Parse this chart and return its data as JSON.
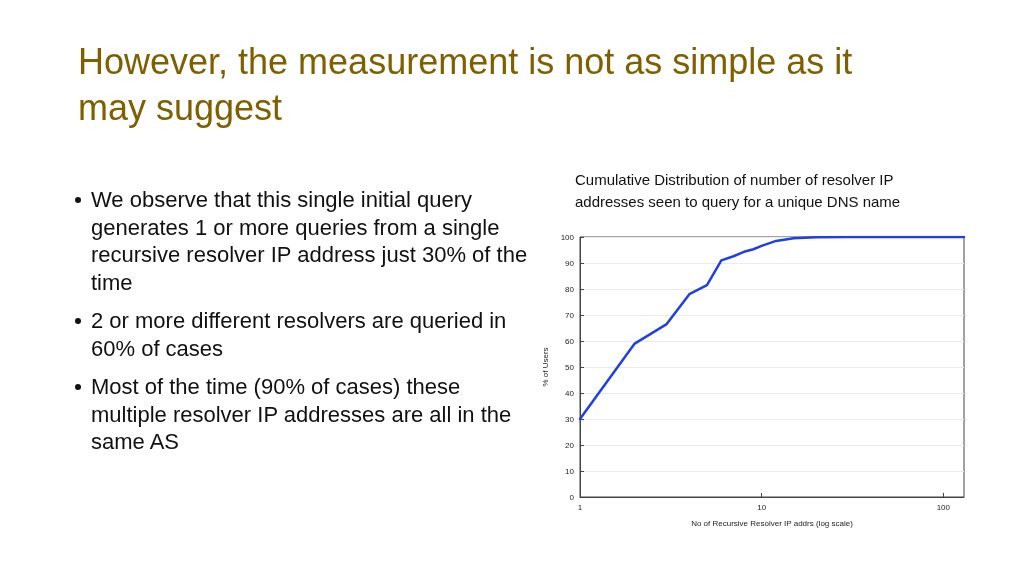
{
  "chart_data": {
    "type": "line",
    "title": "However, the measurement is not as simple as it may suggest",
    "subtitle": "Cumulative Distribution of number of resolver IP addresses seen to query for a unique DNS name",
    "xlabel": "No of Recursive Resolver IP addrs (log scale)",
    "ylabel": "% of Users",
    "annotations": [
      "We observe that this single initial query generates 1 or more queries from a single recursive resolver IP address just 30% of the time",
      "2 or more different resolvers are queried in 60% of cases",
      "Most of the time (90% of cases) these multiple resolver IP addresses are all in the same AS"
    ],
    "x": [
      1,
      2,
      3,
      4,
      5,
      6,
      7,
      8,
      9,
      10,
      12,
      15,
      20,
      30,
      50,
      100,
      130
    ],
    "values": [
      30,
      59,
      66.5,
      78,
      81.5,
      91,
      92.6,
      94.3,
      95.3,
      96.6,
      98.5,
      99.5,
      99.9,
      100,
      100,
      100,
      100
    ],
    "color": "#2040e0",
    "xlim": [
      1,
      130
    ],
    "ylim": [
      0,
      100
    ],
    "xticks": [
      1,
      10,
      100
    ],
    "yticks": [
      0,
      10,
      20,
      30,
      40,
      50,
      60,
      70,
      80,
      90,
      100
    ],
    "log": "x",
    "grid": "y",
    "marker": "none",
    "line_style": "solid"
  }
}
